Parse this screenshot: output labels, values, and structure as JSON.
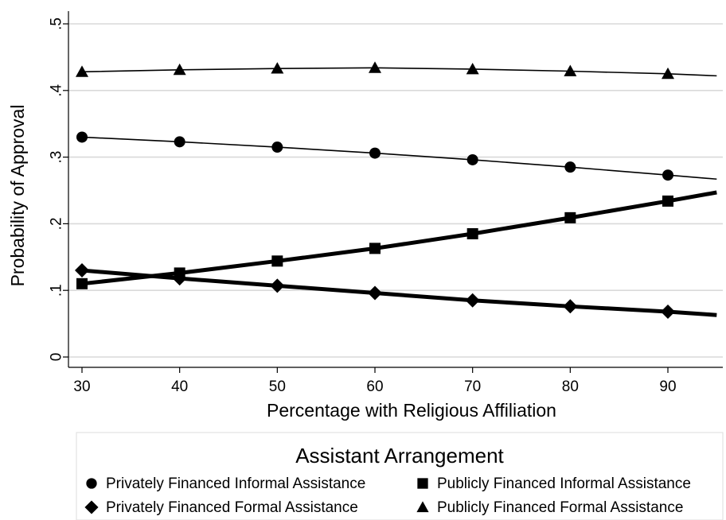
{
  "chart_data": {
    "type": "line",
    "xlabel": "Percentage with Religious Affiliation",
    "ylabel": "Probability of Approval",
    "xlim": [
      29,
      95
    ],
    "ylim": [
      0,
      0.5
    ],
    "x_ticks": [
      30,
      40,
      50,
      60,
      70,
      80,
      90
    ],
    "x_tick_labels": [
      "30",
      "40",
      "50",
      "60",
      "70",
      "80",
      "90"
    ],
    "y_ticks": [
      0,
      0.1,
      0.2,
      0.3,
      0.4,
      0.5
    ],
    "y_tick_labels": [
      "0",
      ".1",
      ".2",
      ".3",
      ".4",
      ".5"
    ],
    "grid": "horizontal",
    "legend": {
      "title": "Assistant Arrangement",
      "placement": "bottom"
    },
    "series": [
      {
        "name": "Privately Financed Informal Assistance",
        "marker": "circle",
        "line_weight": "thin",
        "x": [
          30,
          40,
          50,
          60,
          70,
          80,
          90
        ],
        "y": [
          0.33,
          0.323,
          0.315,
          0.306,
          0.296,
          0.285,
          0.273
        ],
        "line_end": [
          95,
          0.267
        ]
      },
      {
        "name": "Privately Financed Formal Assistance",
        "marker": "diamond",
        "line_weight": "thick",
        "x": [
          30,
          40,
          50,
          60,
          70,
          80,
          90
        ],
        "y": [
          0.13,
          0.118,
          0.107,
          0.096,
          0.085,
          0.076,
          0.068
        ],
        "line_end": [
          95,
          0.063
        ]
      },
      {
        "name": "Publicly Financed Informal Assistance",
        "marker": "square",
        "line_weight": "thick",
        "x": [
          30,
          40,
          50,
          60,
          70,
          80,
          90
        ],
        "y": [
          0.11,
          0.126,
          0.144,
          0.163,
          0.185,
          0.209,
          0.234
        ],
        "line_end": [
          95,
          0.247
        ]
      },
      {
        "name": "Publicly Financed Formal Assistance",
        "marker": "triangle",
        "line_weight": "thin",
        "x": [
          30,
          40,
          50,
          60,
          70,
          80,
          90
        ],
        "y": [
          0.428,
          0.431,
          0.433,
          0.434,
          0.432,
          0.429,
          0.425
        ],
        "line_end": [
          95,
          0.422
        ]
      }
    ]
  }
}
